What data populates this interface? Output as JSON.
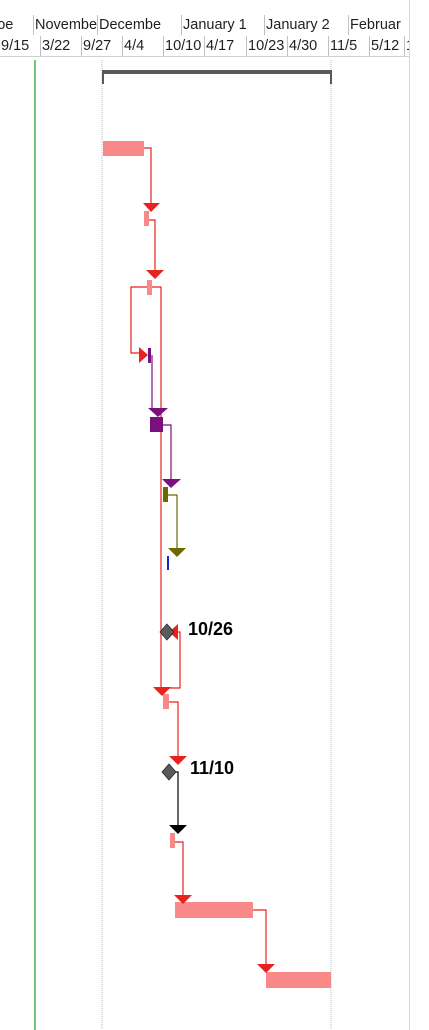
{
  "timescale": {
    "top_tier": [
      "ɔe",
      "Novembe",
      "Decembe",
      "January 1",
      "January 2",
      "Februar"
    ],
    "bottom_tier": [
      "9/15",
      "3/22",
      "9/27",
      "4/4",
      "10/10",
      "4/17",
      "10/23",
      "4/30",
      "11/5",
      "5/12",
      "1"
    ]
  },
  "milestones": [
    {
      "name": "milestone-1",
      "label": "10/26"
    },
    {
      "name": "milestone-2",
      "label": "11/10"
    }
  ],
  "colors": {
    "task": "#f98989",
    "link": "#e8231f",
    "summary": "#595959",
    "purple": "#7a0f80",
    "olive": "#6a6a00",
    "blue": "#1428d0",
    "milestone": "#5a5a5a",
    "today": "#4caa4c"
  }
}
